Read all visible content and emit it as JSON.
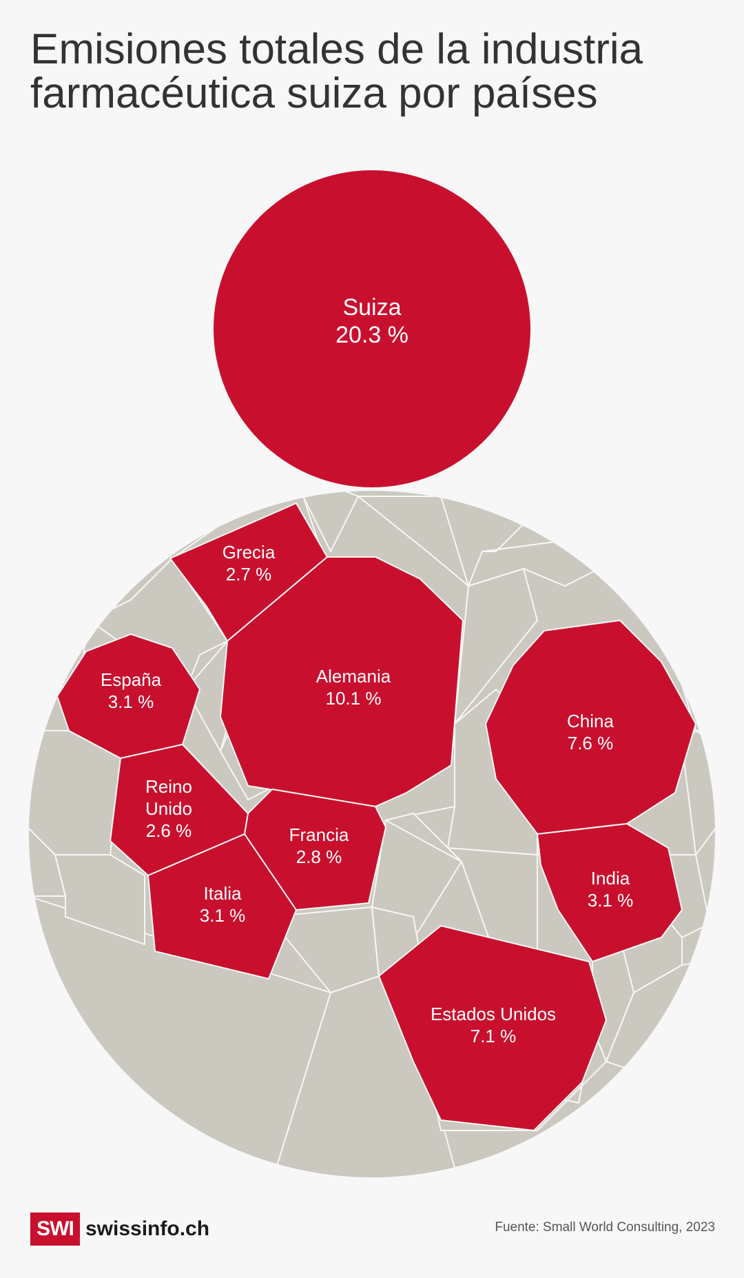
{
  "title": "Emisiones totales de la industria farmacéutica suiza por países",
  "colors": {
    "highlight": "#c8102e",
    "other": "#cbc8bf",
    "background": "#f7f7f7",
    "border": "#f7f7f7"
  },
  "chart_data": {
    "type": "voronoi-treemap",
    "unit": "%",
    "labeled": [
      {
        "country": "Suiza",
        "value": 20.3,
        "label": "20.3 %"
      },
      {
        "country": "Alemania",
        "value": 10.1,
        "label": "10.1 %"
      },
      {
        "country": "China",
        "value": 7.6,
        "label": "7.6 %"
      },
      {
        "country": "Estados Unidos",
        "value": 7.1,
        "label": "7.1 %"
      },
      {
        "country": "España",
        "value": 3.1,
        "label": "3.1 %"
      },
      {
        "country": "Italia",
        "value": 3.1,
        "label": "3.1 %"
      },
      {
        "country": "India",
        "value": 3.1,
        "label": "3.1 %"
      },
      {
        "country": "Francia",
        "value": 2.8,
        "label": "2.8 %"
      },
      {
        "country": "Grecia",
        "value": 2.7,
        "label": "2.7 %"
      },
      {
        "country": "Reino Unido",
        "value": 2.6,
        "label": "2.6 %"
      }
    ]
  },
  "footer": {
    "logo_box": "SWI",
    "logo_text": "swissinfo.ch",
    "source": "Fuente: Small World Consulting, 2023"
  }
}
